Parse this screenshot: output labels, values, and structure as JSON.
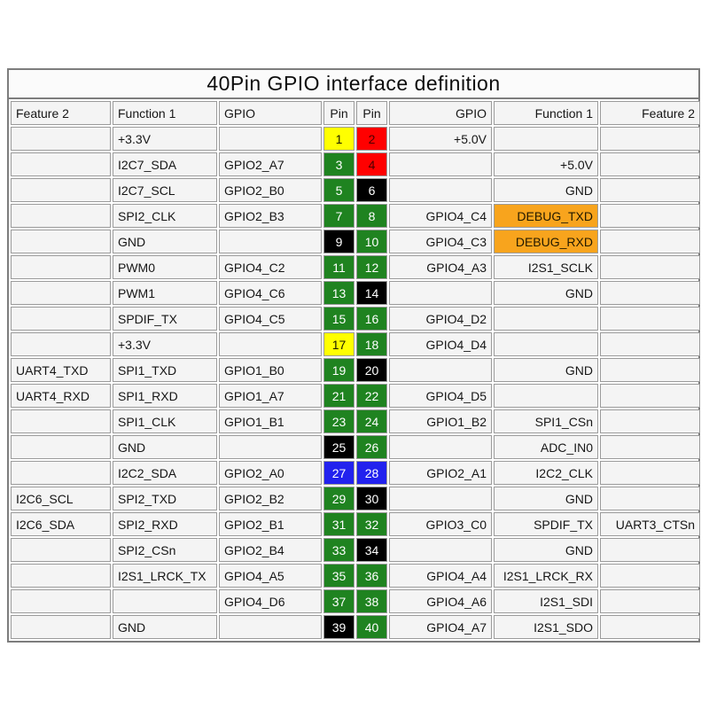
{
  "title": "40Pin GPIO interface definition",
  "columns": {
    "left_feature2": "Feature 2",
    "left_function1": "Function 1",
    "left_gpio": "GPIO",
    "left_pin": "Pin",
    "right_pin": "Pin",
    "right_gpio": "GPIO",
    "right_function1": "Function 1",
    "right_feature2": "Feature 2"
  },
  "colors": {
    "cell_bg": "#f4f4f4",
    "grid_border": "#9b9b9b",
    "outer_border": "#7d7d7d",
    "debug_highlight": "#f8a41d"
  },
  "pin_colors": {
    "yellow": {
      "bg": "#ffff00",
      "fg": "#1a1a00"
    },
    "red": {
      "bg": "#ff0000",
      "fg": "#4d0000"
    },
    "green": {
      "bg": "#1f8320",
      "fg": "#ffffff"
    },
    "black": {
      "bg": "#000000",
      "fg": "#ffffff"
    },
    "blue": {
      "bg": "#2222ee",
      "fg": "#ffffff"
    }
  },
  "rows": [
    {
      "left": {
        "feature2": "",
        "function1": "+3.3V",
        "gpio": "",
        "pin": "1",
        "color": "yellow"
      },
      "right": {
        "pin": "2",
        "color": "red",
        "gpio": "+5.0V",
        "function1": "",
        "feature2": "",
        "highlight": false
      }
    },
    {
      "left": {
        "feature2": "",
        "function1": "I2C7_SDA",
        "gpio": "GPIO2_A7",
        "pin": "3",
        "color": "green"
      },
      "right": {
        "pin": "4",
        "color": "red",
        "gpio": "",
        "function1": "+5.0V",
        "feature2": "",
        "highlight": false
      }
    },
    {
      "left": {
        "feature2": "",
        "function1": "I2C7_SCL",
        "gpio": "GPIO2_B0",
        "pin": "5",
        "color": "green"
      },
      "right": {
        "pin": "6",
        "color": "black",
        "gpio": "",
        "function1": "GND",
        "feature2": "",
        "highlight": false
      }
    },
    {
      "left": {
        "feature2": "",
        "function1": "SPI2_CLK",
        "gpio": "GPIO2_B3",
        "pin": "7",
        "color": "green"
      },
      "right": {
        "pin": "8",
        "color": "green",
        "gpio": "GPIO4_C4",
        "function1": "DEBUG_TXD",
        "feature2": "",
        "highlight": true
      }
    },
    {
      "left": {
        "feature2": "",
        "function1": "GND",
        "gpio": "",
        "pin": "9",
        "color": "black"
      },
      "right": {
        "pin": "10",
        "color": "green",
        "gpio": "GPIO4_C3",
        "function1": "DEBUG_RXD",
        "feature2": "",
        "highlight": true
      }
    },
    {
      "left": {
        "feature2": "",
        "function1": "PWM0",
        "gpio": "GPIO4_C2",
        "pin": "11",
        "color": "green"
      },
      "right": {
        "pin": "12",
        "color": "green",
        "gpio": "GPIO4_A3",
        "function1": "I2S1_SCLK",
        "feature2": "",
        "highlight": false
      }
    },
    {
      "left": {
        "feature2": "",
        "function1": "PWM1",
        "gpio": "GPIO4_C6",
        "pin": "13",
        "color": "green"
      },
      "right": {
        "pin": "14",
        "color": "black",
        "gpio": "",
        "function1": "GND",
        "feature2": "",
        "highlight": false
      }
    },
    {
      "left": {
        "feature2": "",
        "function1": "SPDIF_TX",
        "gpio": "GPIO4_C5",
        "pin": "15",
        "color": "green"
      },
      "right": {
        "pin": "16",
        "color": "green",
        "gpio": "GPIO4_D2",
        "function1": "",
        "feature2": "",
        "highlight": false
      }
    },
    {
      "left": {
        "feature2": "",
        "function1": "+3.3V",
        "gpio": "",
        "pin": "17",
        "color": "yellow"
      },
      "right": {
        "pin": "18",
        "color": "green",
        "gpio": "GPIO4_D4",
        "function1": "",
        "feature2": "",
        "highlight": false
      }
    },
    {
      "left": {
        "feature2": "UART4_TXD",
        "function1": "SPI1_TXD",
        "gpio": "GPIO1_B0",
        "pin": "19",
        "color": "green"
      },
      "right": {
        "pin": "20",
        "color": "black",
        "gpio": "",
        "function1": "GND",
        "feature2": "",
        "highlight": false
      }
    },
    {
      "left": {
        "feature2": "UART4_RXD",
        "function1": "SPI1_RXD",
        "gpio": "GPIO1_A7",
        "pin": "21",
        "color": "green"
      },
      "right": {
        "pin": "22",
        "color": "green",
        "gpio": "GPIO4_D5",
        "function1": "",
        "feature2": "",
        "highlight": false
      }
    },
    {
      "left": {
        "feature2": "",
        "function1": "SPI1_CLK",
        "gpio": "GPIO1_B1",
        "pin": "23",
        "color": "green"
      },
      "right": {
        "pin": "24",
        "color": "green",
        "gpio": "GPIO1_B2",
        "function1": "SPI1_CSn",
        "feature2": "",
        "highlight": false
      }
    },
    {
      "left": {
        "feature2": "",
        "function1": "GND",
        "gpio": "",
        "pin": "25",
        "color": "black"
      },
      "right": {
        "pin": "26",
        "color": "green",
        "gpio": "",
        "function1": "ADC_IN0",
        "feature2": "",
        "highlight": false
      }
    },
    {
      "left": {
        "feature2": "",
        "function1": "I2C2_SDA",
        "gpio": "GPIO2_A0",
        "pin": "27",
        "color": "blue"
      },
      "right": {
        "pin": "28",
        "color": "blue",
        "gpio": "GPIO2_A1",
        "function1": "I2C2_CLK",
        "feature2": "",
        "highlight": false
      }
    },
    {
      "left": {
        "feature2": "I2C6_SCL",
        "function1": "SPI2_TXD",
        "gpio": "GPIO2_B2",
        "pin": "29",
        "color": "green"
      },
      "right": {
        "pin": "30",
        "color": "black",
        "gpio": "",
        "function1": "GND",
        "feature2": "",
        "highlight": false
      }
    },
    {
      "left": {
        "feature2": "I2C6_SDA",
        "function1": "SPI2_RXD",
        "gpio": "GPIO2_B1",
        "pin": "31",
        "color": "green"
      },
      "right": {
        "pin": "32",
        "color": "green",
        "gpio": "GPIO3_C0",
        "function1": "SPDIF_TX",
        "feature2": "UART3_CTSn",
        "highlight": false
      }
    },
    {
      "left": {
        "feature2": "",
        "function1": "SPI2_CSn",
        "gpio": "GPIO2_B4",
        "pin": "33",
        "color": "green"
      },
      "right": {
        "pin": "34",
        "color": "black",
        "gpio": "",
        "function1": "GND",
        "feature2": "",
        "highlight": false
      }
    },
    {
      "left": {
        "feature2": "",
        "function1": "I2S1_LRCK_TX",
        "gpio": "GPIO4_A5",
        "pin": "35",
        "color": "green"
      },
      "right": {
        "pin": "36",
        "color": "green",
        "gpio": "GPIO4_A4",
        "function1": "I2S1_LRCK_RX",
        "feature2": "",
        "highlight": false
      }
    },
    {
      "left": {
        "feature2": "",
        "function1": "",
        "gpio": "GPIO4_D6",
        "pin": "37",
        "color": "green"
      },
      "right": {
        "pin": "38",
        "color": "green",
        "gpio": "GPIO4_A6",
        "function1": "I2S1_SDI",
        "feature2": "",
        "highlight": false
      }
    },
    {
      "left": {
        "feature2": "",
        "function1": "GND",
        "gpio": "",
        "pin": "39",
        "color": "black"
      },
      "right": {
        "pin": "40",
        "color": "green",
        "gpio": "GPIO4_A7",
        "function1": "I2S1_SDO",
        "feature2": "",
        "highlight": false
      }
    }
  ]
}
